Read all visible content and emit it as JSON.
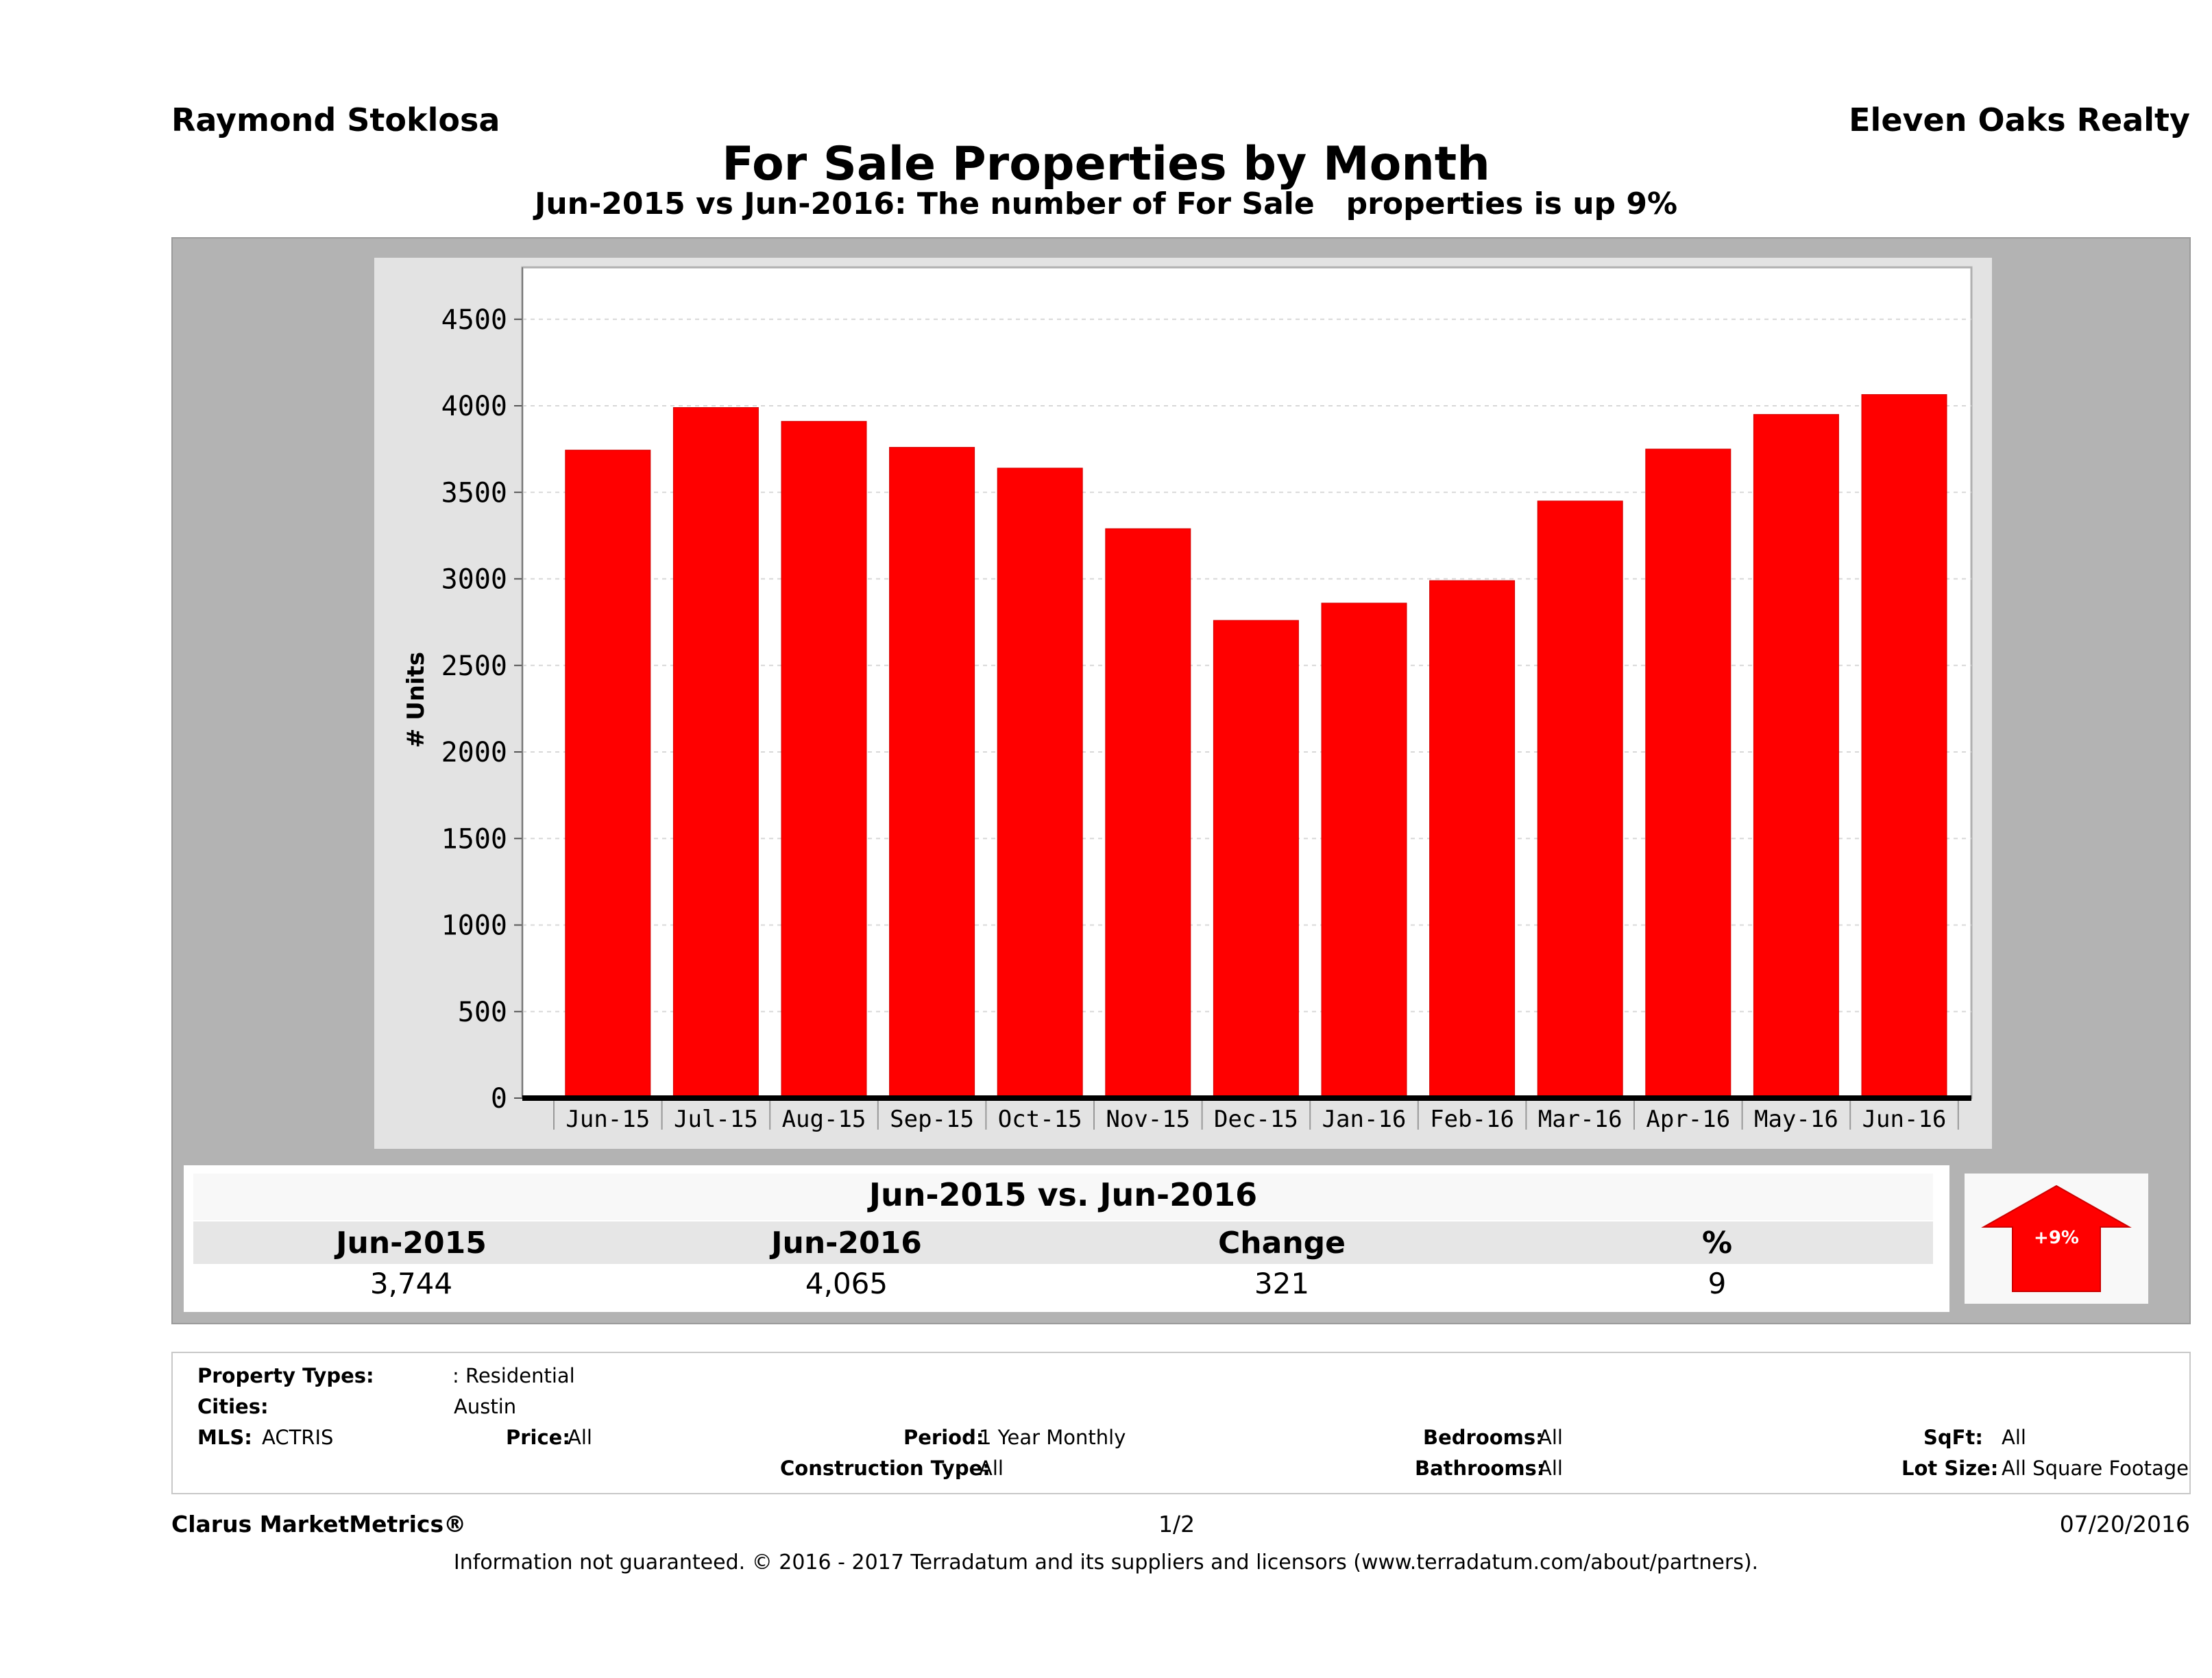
{
  "header": {
    "agent_name": "Raymond Stoklosa",
    "brokerage": "Eleven Oaks Realty",
    "title": "For Sale Properties by Month",
    "subtitle": "Jun-2015 vs Jun-2016: The number of For Sale   properties is up 9%"
  },
  "chart_data": {
    "type": "bar",
    "categories": [
      "Jun-15",
      "Jul-15",
      "Aug-15",
      "Sep-15",
      "Oct-15",
      "Nov-15",
      "Dec-15",
      "Jan-16",
      "Feb-16",
      "Mar-16",
      "Apr-16",
      "May-16",
      "Jun-16"
    ],
    "values": [
      3744,
      3990,
      3910,
      3760,
      3640,
      3290,
      2760,
      2860,
      2990,
      3450,
      3750,
      3950,
      4065
    ],
    "ylabel": "# Units",
    "ylim": [
      0,
      4800
    ],
    "yticks": [
      0,
      500,
      1000,
      1500,
      2000,
      2500,
      3000,
      3500,
      4000,
      4500
    ],
    "grid": true,
    "bar_color": "#ff0000"
  },
  "summary": {
    "title": "Jun-2015 vs. Jun-2016",
    "headers": [
      "Jun-2015",
      "Jun-2016",
      "Change",
      "%"
    ],
    "values": [
      "3,744",
      "4,065",
      "321",
      "9"
    ],
    "badge": "+9%",
    "badge_color": "#ff0000"
  },
  "filters": {
    "property_types_label": "Property Types:",
    "property_types_value": ": Residential",
    "cities_label": "Cities:",
    "cities_value": "Austin",
    "mls_label": "MLS:",
    "mls_value": "ACTRIS",
    "price_label": "Price:",
    "price_value": "All",
    "period_label": "Period:",
    "period_value": "1 Year Monthly",
    "construction_label": "Construction Type:",
    "construction_value": "All",
    "bedrooms_label": "Bedrooms:",
    "bedrooms_value": "All",
    "bathrooms_label": "Bathrooms:",
    "bathrooms_value": "All",
    "sqft_label": "SqFt:",
    "sqft_value": "All",
    "lotsize_label": "Lot Size:",
    "lotsize_value": "All Square Footage"
  },
  "footer": {
    "product": "Clarus MarketMetrics®",
    "page": "1/2",
    "date": "07/20/2016",
    "disclaimer": "Information not guaranteed. © 2016 - 2017 Terradatum and its suppliers and licensors (www.terradatum.com/about/partners)."
  }
}
